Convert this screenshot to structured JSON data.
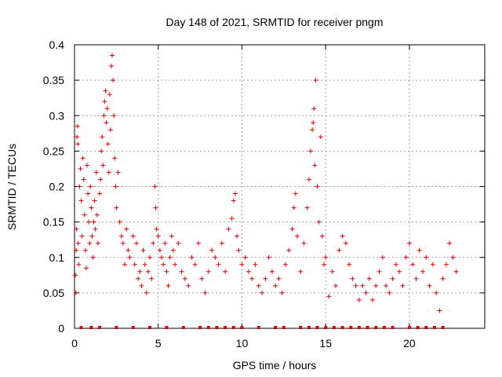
{
  "chart_data": {
    "type": "scatter",
    "title": "Day 148 of 2021, SRMTID for receiver pngm",
    "xlabel": "GPS time / hours",
    "ylabel": "SRMTID / TECUs",
    "xlim": [
      0,
      24.5
    ],
    "ylim": [
      0,
      0.4
    ],
    "x_ticks": [
      0,
      5,
      10,
      15,
      20
    ],
    "y_ticks": [
      0,
      0.05,
      0.1,
      0.15,
      0.2,
      0.25,
      0.3,
      0.35,
      0.4
    ],
    "y_tick_labels": [
      "0",
      "0.05",
      "0.1",
      "0.15",
      "0.2",
      "0.25",
      "0.3",
      "0.35",
      "0.4"
    ],
    "grid": true,
    "marker": "+",
    "marker_color": "#dd0000",
    "series": [
      {
        "name": "SRMTID",
        "points": [
          [
            0.05,
            0.075
          ],
          [
            0.08,
            0.05
          ],
          [
            0.1,
            0.11
          ],
          [
            0.12,
            0.14
          ],
          [
            0.15,
            0.27
          ],
          [
            0.18,
            0.285
          ],
          [
            0.2,
            0.26
          ],
          [
            0.22,
            0.12
          ],
          [
            0.25,
            0.09
          ],
          [
            0.3,
            0.2
          ],
          [
            0.35,
            0.225
          ],
          [
            0.4,
            0.18
          ],
          [
            0.45,
            0.13
          ],
          [
            0.5,
            0.24
          ],
          [
            0.55,
            0.21
          ],
          [
            0.6,
            0.16
          ],
          [
            0.65,
            0.11
          ],
          [
            0.7,
            0.085
          ],
          [
            0.75,
            0.23
          ],
          [
            0.8,
            0.19
          ],
          [
            0.85,
            0.15
          ],
          [
            0.9,
            0.12
          ],
          [
            0.95,
            0.2
          ],
          [
            1.0,
            0.17
          ],
          [
            1.05,
            0.13
          ],
          [
            1.1,
            0.1
          ],
          [
            1.15,
            0.15
          ],
          [
            1.2,
            0.18
          ],
          [
            1.25,
            0.14
          ],
          [
            1.3,
            0.22
          ],
          [
            1.35,
            0.16
          ],
          [
            1.4,
            0.12
          ],
          [
            1.5,
            0.19
          ],
          [
            1.55,
            0.21
          ],
          [
            1.6,
            0.25
          ],
          [
            1.65,
            0.27
          ],
          [
            1.7,
            0.23
          ],
          [
            1.75,
            0.3
          ],
          [
            1.8,
            0.32
          ],
          [
            1.85,
            0.335
          ],
          [
            1.9,
            0.29
          ],
          [
            1.95,
            0.31
          ],
          [
            2.0,
            0.26
          ],
          [
            2.05,
            0.22
          ],
          [
            2.1,
            0.33
          ],
          [
            2.15,
            0.28
          ],
          [
            2.2,
            0.37
          ],
          [
            2.25,
            0.385
          ],
          [
            2.3,
            0.35
          ],
          [
            2.35,
            0.3
          ],
          [
            2.4,
            0.24
          ],
          [
            2.45,
            0.2
          ],
          [
            2.5,
            0.17
          ],
          [
            2.6,
            0.22
          ],
          [
            2.7,
            0.15
          ],
          [
            2.8,
            0.13
          ],
          [
            2.9,
            0.12
          ],
          [
            3.0,
            0.09
          ],
          [
            3.1,
            0.14
          ],
          [
            3.2,
            0.11
          ],
          [
            3.3,
            0.1
          ],
          [
            3.5,
            0.13
          ],
          [
            3.6,
            0.09
          ],
          [
            3.7,
            0.12
          ],
          [
            3.8,
            0.07
          ],
          [
            3.9,
            0.08
          ],
          [
            4.0,
            0.06
          ],
          [
            4.1,
            0.11
          ],
          [
            4.2,
            0.09
          ],
          [
            4.3,
            0.05
          ],
          [
            4.4,
            0.08
          ],
          [
            4.5,
            0.1
          ],
          [
            4.6,
            0.07
          ],
          [
            4.7,
            0.12
          ],
          [
            4.8,
            0.2
          ],
          [
            4.85,
            0.17
          ],
          [
            4.9,
            0.14
          ],
          [
            5.0,
            0.13
          ],
          [
            5.1,
            0.11
          ],
          [
            5.2,
            0.1
          ],
          [
            5.3,
            0.09
          ],
          [
            5.4,
            0.12
          ],
          [
            5.5,
            0.08
          ],
          [
            5.6,
            0.06
          ],
          [
            5.7,
            0.1
          ],
          [
            5.8,
            0.13
          ],
          [
            5.9,
            0.11
          ],
          [
            6.0,
            0.09
          ],
          [
            6.2,
            0.12
          ],
          [
            6.4,
            0.08
          ],
          [
            6.6,
            0.07
          ],
          [
            6.8,
            0.06
          ],
          [
            7.0,
            0.1
          ],
          [
            7.2,
            0.09
          ],
          [
            7.4,
            0.12
          ],
          [
            7.6,
            0.07
          ],
          [
            7.8,
            0.05
          ],
          [
            8.0,
            0.08
          ],
          [
            8.2,
            0.11
          ],
          [
            8.4,
            0.1
          ],
          [
            8.6,
            0.09
          ],
          [
            8.8,
            0.12
          ],
          [
            9.0,
            0.08
          ],
          [
            9.2,
            0.14
          ],
          [
            9.4,
            0.155
          ],
          [
            9.5,
            0.18
          ],
          [
            9.6,
            0.19
          ],
          [
            9.7,
            0.13
          ],
          [
            9.8,
            0.11
          ],
          [
            10.0,
            0.09
          ],
          [
            10.2,
            0.1
          ],
          [
            10.4,
            0.08
          ],
          [
            10.6,
            0.07
          ],
          [
            10.8,
            0.09
          ],
          [
            11.0,
            0.06
          ],
          [
            11.2,
            0.05
          ],
          [
            11.4,
            0.07
          ],
          [
            11.6,
            0.1
          ],
          [
            11.8,
            0.08
          ],
          [
            12.0,
            0.06
          ],
          [
            12.2,
            0.07
          ],
          [
            12.4,
            0.05
          ],
          [
            12.6,
            0.09
          ],
          [
            12.8,
            0.11
          ],
          [
            13.0,
            0.14
          ],
          [
            13.1,
            0.17
          ],
          [
            13.2,
            0.19
          ],
          [
            13.3,
            0.13
          ],
          [
            13.5,
            0.08
          ],
          [
            13.7,
            0.12
          ],
          [
            13.9,
            0.17
          ],
          [
            14.0,
            0.21
          ],
          [
            14.1,
            0.25
          ],
          [
            14.2,
            0.28
          ],
          [
            14.25,
            0.29
          ],
          [
            14.3,
            0.31
          ],
          [
            14.35,
            0.23
          ],
          [
            14.4,
            0.35
          ],
          [
            14.5,
            0.2
          ],
          [
            14.6,
            0.15
          ],
          [
            14.7,
            0.27
          ],
          [
            14.8,
            0.13
          ],
          [
            14.9,
            0.09
          ],
          [
            15.0,
            0.1
          ],
          [
            15.2,
            0.045
          ],
          [
            15.4,
            0.08
          ],
          [
            15.6,
            0.06
          ],
          [
            15.8,
            0.11
          ],
          [
            16.0,
            0.13
          ],
          [
            16.2,
            0.12
          ],
          [
            16.4,
            0.09
          ],
          [
            16.6,
            0.07
          ],
          [
            16.8,
            0.06
          ],
          [
            17.0,
            0.04
          ],
          [
            17.2,
            0.06
          ],
          [
            17.4,
            0.05
          ],
          [
            17.6,
            0.07
          ],
          [
            17.8,
            0.04
          ],
          [
            18.0,
            0.06
          ],
          [
            18.2,
            0.08
          ],
          [
            18.4,
            0.1
          ],
          [
            18.6,
            0.06
          ],
          [
            18.8,
            0.05
          ],
          [
            19.0,
            0.07
          ],
          [
            19.2,
            0.09
          ],
          [
            19.4,
            0.08
          ],
          [
            19.6,
            0.06
          ],
          [
            19.8,
            0.1
          ],
          [
            20.0,
            0.12
          ],
          [
            20.2,
            0.09
          ],
          [
            20.4,
            0.07
          ],
          [
            20.6,
            0.11
          ],
          [
            20.8,
            0.08
          ],
          [
            21.0,
            0.1
          ],
          [
            21.2,
            0.06
          ],
          [
            21.4,
            0.09
          ],
          [
            21.6,
            0.05
          ],
          [
            21.8,
            0.025
          ],
          [
            22.0,
            0.07
          ],
          [
            22.2,
            0.09
          ],
          [
            22.4,
            0.12
          ],
          [
            22.6,
            0.1
          ],
          [
            22.8,
            0.08
          ]
        ]
      }
    ],
    "zero_markers_x": [
      0.4,
      1.0,
      1.5,
      2.5,
      3.5,
      4.5,
      5.5,
      6.5,
      7.5,
      8.0,
      8.5,
      9.0,
      9.5,
      10.0,
      11.0,
      12.0,
      12.5,
      13.5,
      14.0,
      14.5,
      15.0,
      15.5,
      16.0,
      16.5,
      17.0,
      17.5,
      18.0,
      18.5,
      19.0,
      20.0,
      20.5,
      21.0,
      21.5,
      22.0
    ]
  }
}
